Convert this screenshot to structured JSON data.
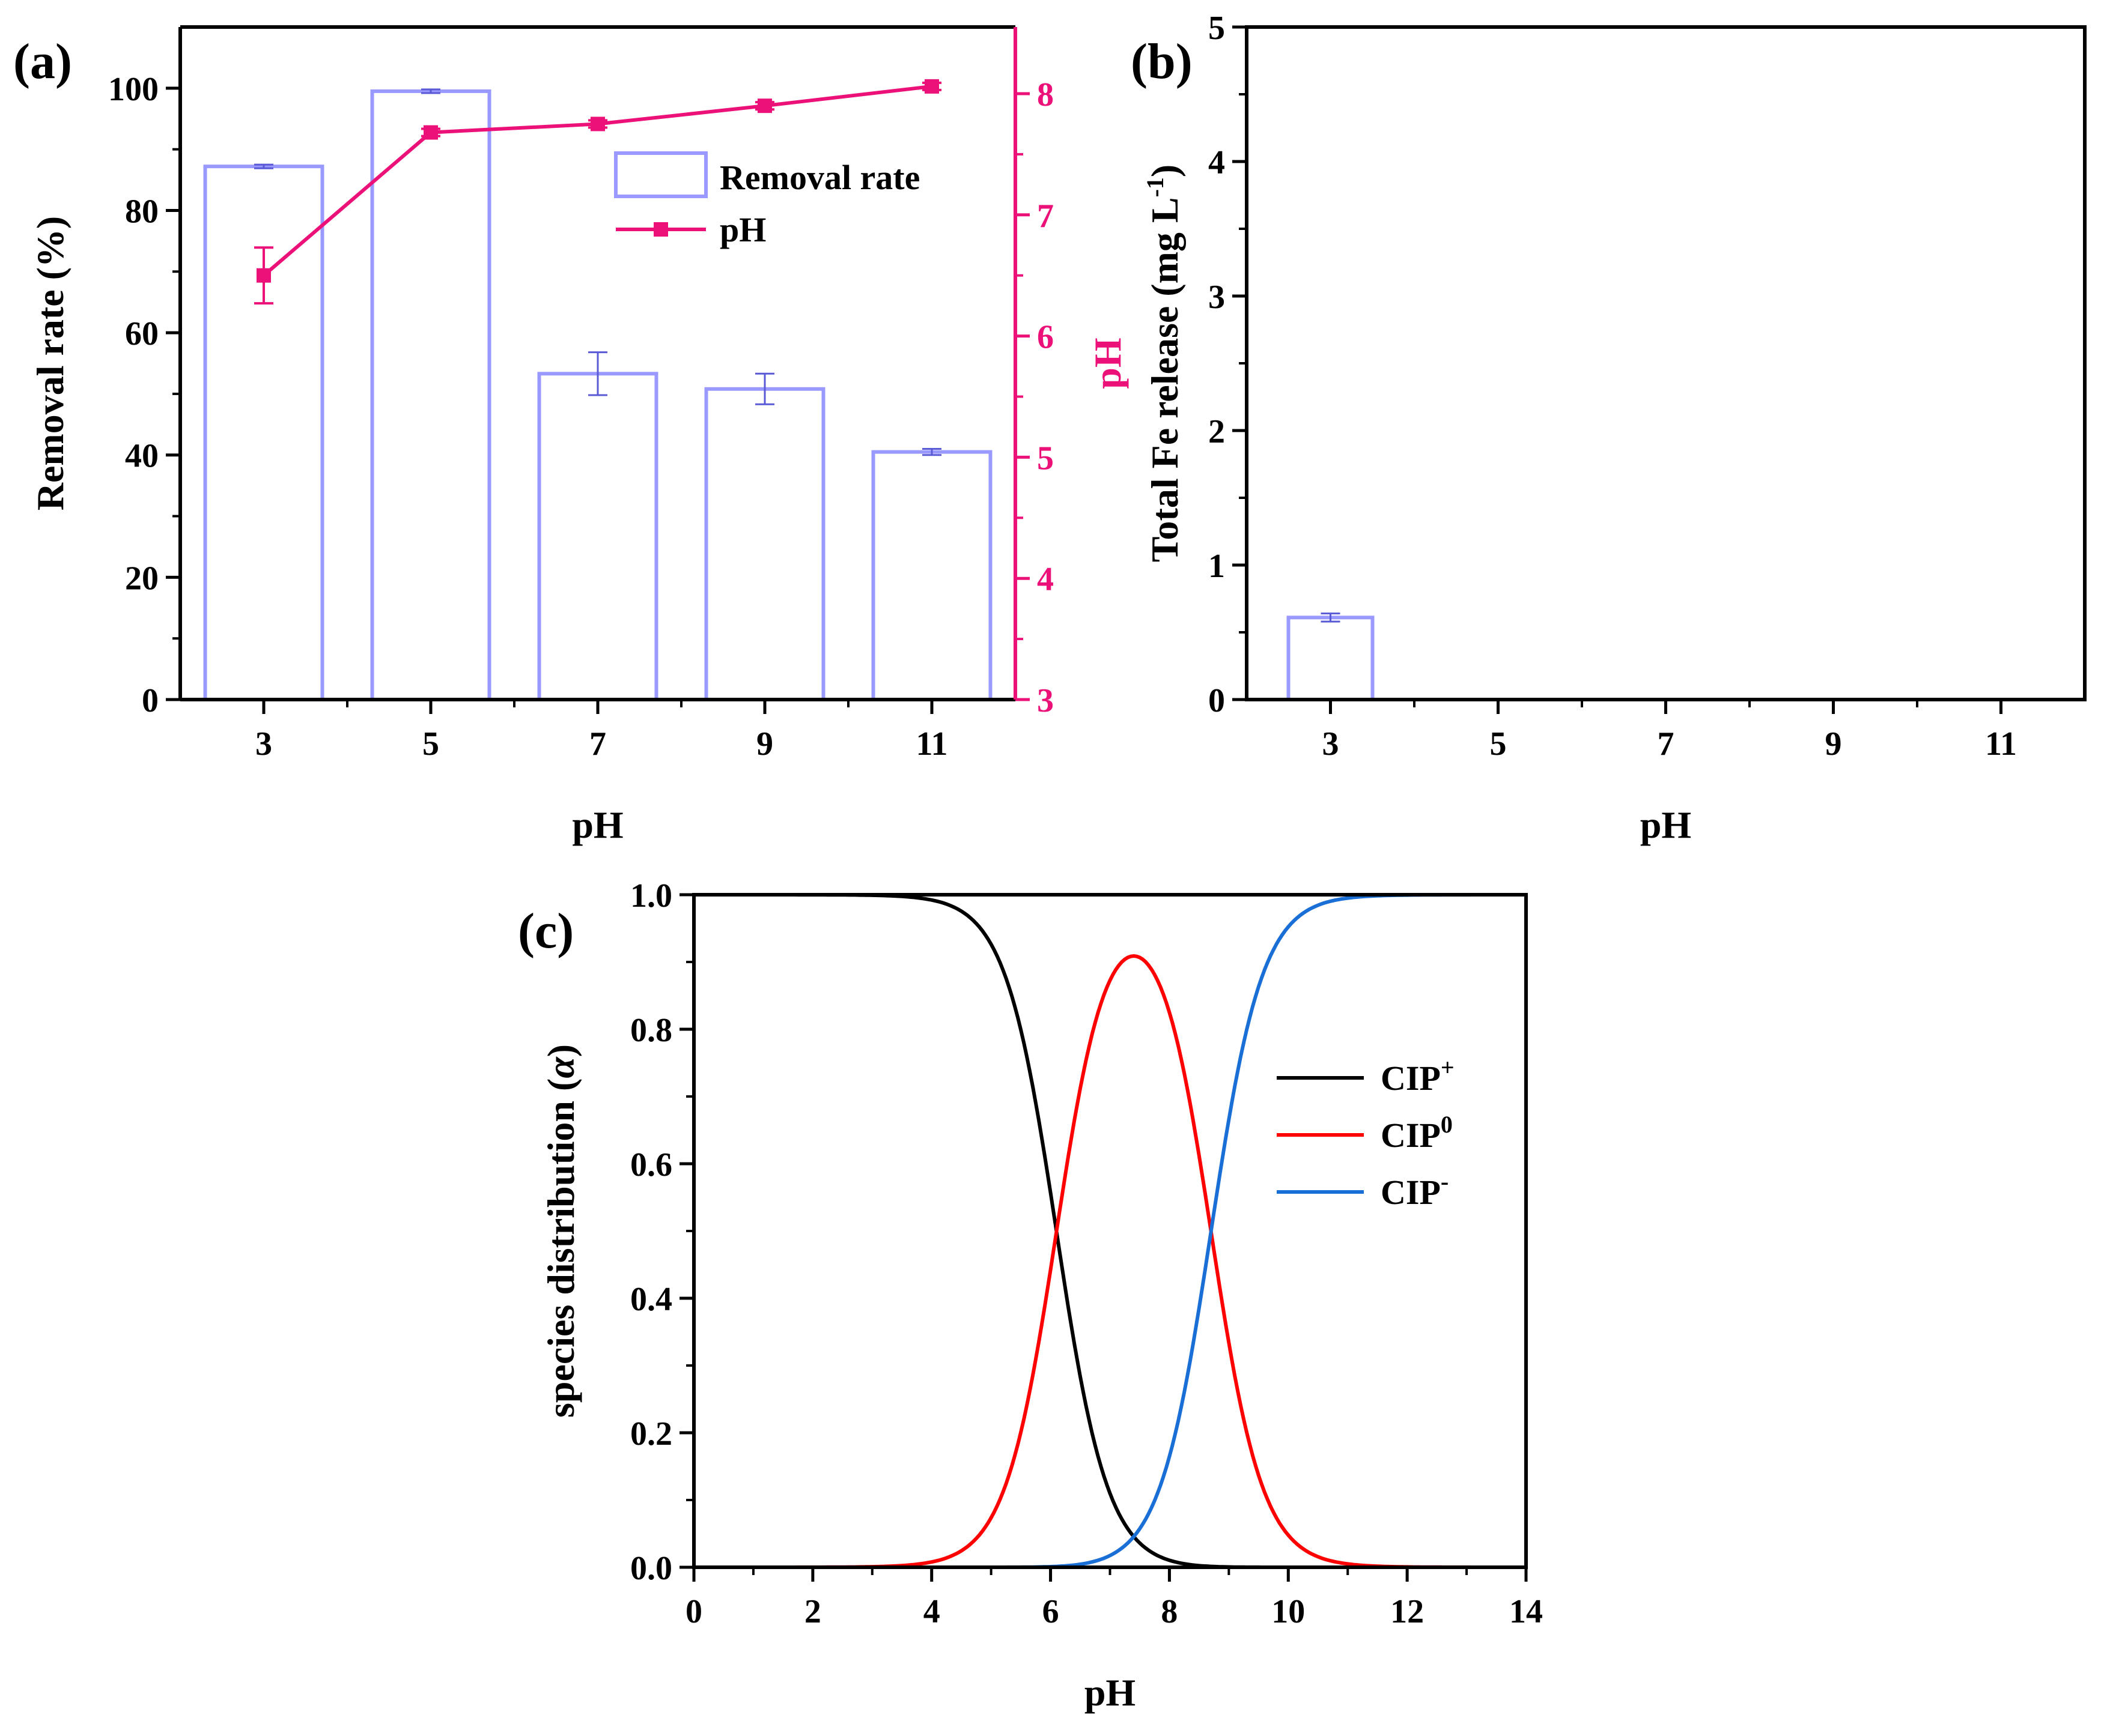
{
  "chart_data": [
    {
      "panel": "(a)",
      "type": "bar",
      "xlabel": "pH",
      "ylabel": "Removal rate (%)",
      "y2label": "pH",
      "categories": [
        "3",
        "5",
        "7",
        "9",
        "11"
      ],
      "ylim": [
        0,
        110
      ],
      "yticks": [
        0,
        20,
        40,
        60,
        80,
        100
      ],
      "y2lim": [
        3,
        8.55
      ],
      "y2ticks": [
        3,
        4,
        5,
        6,
        7,
        8
      ],
      "series": [
        {
          "name": "Removal rate",
          "kind": "bar",
          "axis": "left",
          "values": [
            87.2,
            99.5,
            53.3,
            50.8,
            40.5
          ],
          "errors": [
            0.3,
            0.3,
            3.5,
            2.5,
            0.5
          ],
          "color": "#9999ff"
        },
        {
          "name": "pH",
          "kind": "line",
          "axis": "right",
          "values": [
            6.5,
            7.68,
            7.75,
            7.9,
            8.06
          ],
          "errors": [
            0.23,
            0.03,
            0.03,
            0.03,
            0.03
          ],
          "color": "#ec1178"
        }
      ],
      "legend": {
        "position": "top-right",
        "entries": [
          "Removal rate",
          "pH"
        ]
      }
    },
    {
      "panel": "(b)",
      "type": "bar",
      "xlabel": "pH",
      "ylabel": "Total Fe release (mg L",
      "ylabel_sup": "-1",
      "ylabel_close": ")",
      "categories": [
        "3",
        "5",
        "7",
        "9",
        "11"
      ],
      "ylim": [
        0,
        5
      ],
      "yticks": [
        0,
        1,
        2,
        3,
        4,
        5
      ],
      "series": [
        {
          "name": "Total Fe release",
          "kind": "bar",
          "values": [
            0.61,
            0,
            0,
            0,
            0
          ],
          "errors": [
            0.03,
            0,
            0,
            0,
            0
          ],
          "color": "#9999ff"
        }
      ]
    },
    {
      "panel": "(c)",
      "type": "line",
      "xlabel": "pH",
      "ylabel": "species distribution (",
      "ylabel_symbol": "α",
      "ylabel_close": ")",
      "xlim": [
        0,
        14
      ],
      "xticks": [
        0,
        2,
        4,
        6,
        8,
        10,
        12,
        14
      ],
      "ylim": [
        0,
        1
      ],
      "yticks": [
        "0.0",
        "0.2",
        "0.4",
        "0.6",
        "0.8",
        "1.0"
      ],
      "pKa": [
        6.1,
        8.7
      ],
      "series": [
        {
          "name": "CIP",
          "sup": "+",
          "color": "#000000",
          "x": [
            0,
            1,
            2,
            3,
            4,
            5,
            5.5,
            6,
            6.1,
            6.5,
            7,
            7.5,
            8,
            9,
            10,
            12,
            14
          ],
          "values": [
            1.0,
            1.0,
            1.0,
            0.999,
            0.992,
            0.925,
            0.798,
            0.557,
            0.5,
            0.284,
            0.109,
            0.038,
            0.012,
            0.001,
            0.0,
            0.0,
            0.0
          ]
        },
        {
          "name": "CIP",
          "sup": "0",
          "color": "#ff0000",
          "x": [
            0,
            2,
            3,
            4,
            5,
            5.5,
            6,
            6.5,
            7,
            7.4,
            8,
            8.5,
            8.7,
            9,
            10,
            11,
            12,
            14
          ],
          "values": [
            0.0,
            0.0,
            0.001,
            0.008,
            0.074,
            0.2,
            0.438,
            0.7,
            0.859,
            0.908,
            0.825,
            0.593,
            0.5,
            0.333,
            0.047,
            0.005,
            0.0,
            0.0
          ]
        },
        {
          "name": "CIP",
          "sup": "-",
          "color": "#1a6fd6",
          "x": [
            0,
            4,
            5,
            6,
            6.5,
            7,
            7.5,
            8,
            8.5,
            8.7,
            9,
            9.5,
            10,
            11,
            12,
            14
          ],
          "values": [
            0.0,
            0.0,
            0.0,
            0.005,
            0.016,
            0.032,
            0.054,
            0.163,
            0.383,
            0.5,
            0.666,
            0.863,
            0.952,
            0.995,
            1.0,
            1.0
          ]
        }
      ],
      "legend": {
        "position": "center-right"
      }
    }
  ]
}
